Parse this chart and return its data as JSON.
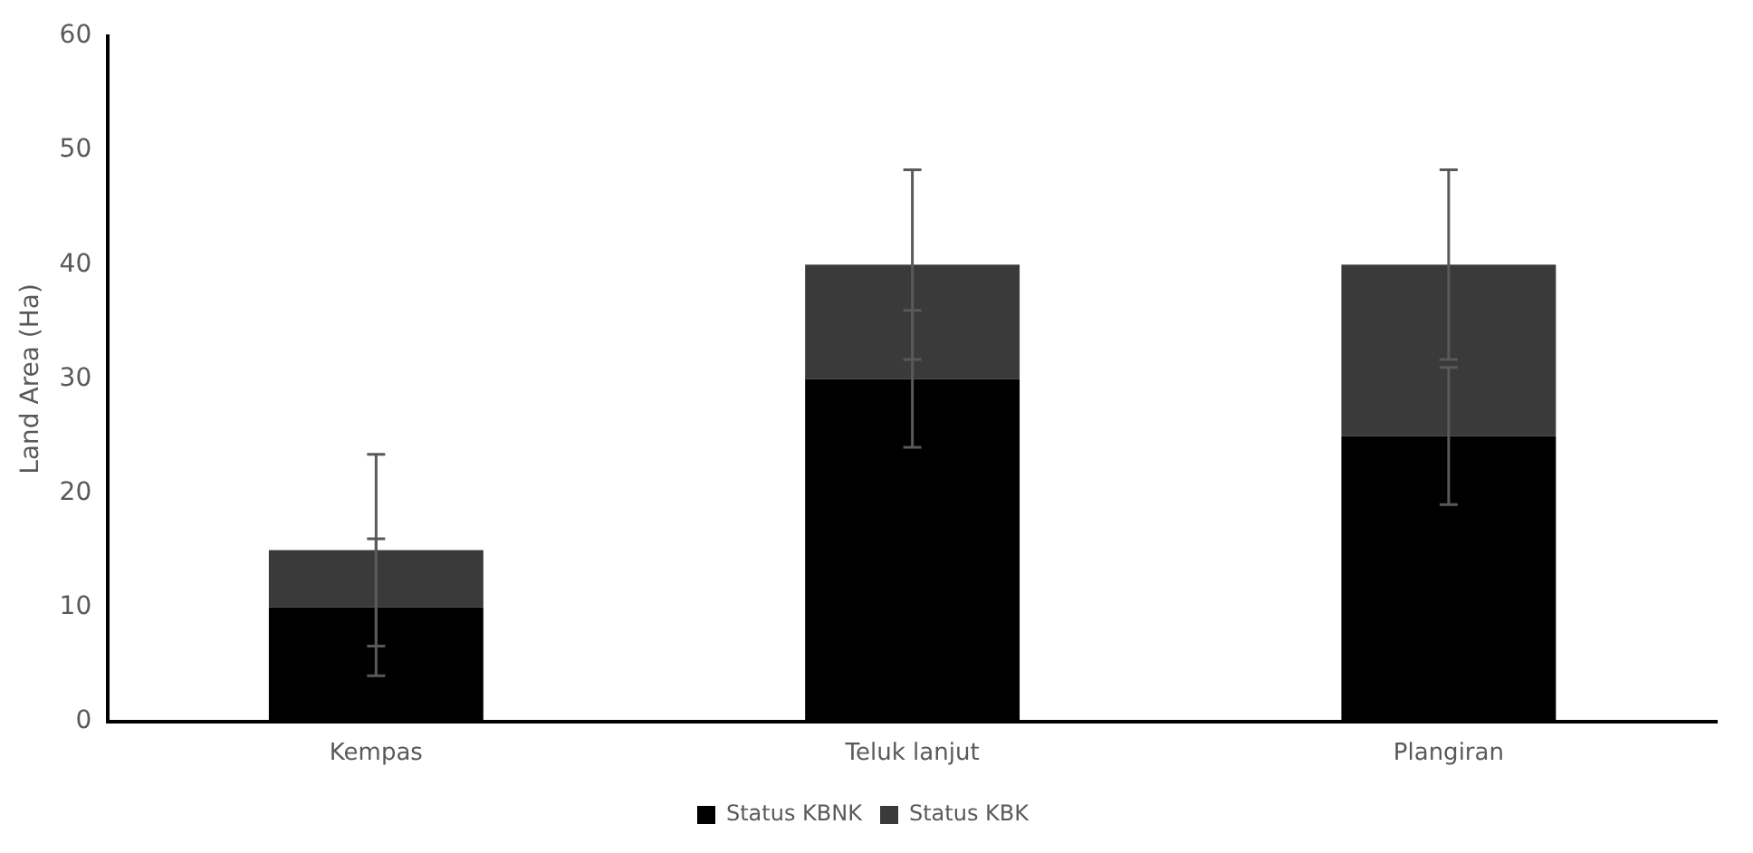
{
  "chart_data": {
    "type": "bar",
    "stacked": true,
    "ylabel": "Land Area (Ha)",
    "categories": [
      "Kempas",
      "Teluk lanjut",
      "Plangiran"
    ],
    "series": [
      {
        "name": "Status KBNK",
        "color": "#000000",
        "values": [
          10,
          30,
          25
        ],
        "errors": [
          6,
          6,
          6
        ]
      },
      {
        "name": "Status KBK",
        "color": "#3a3a3a",
        "values": [
          5,
          10,
          15
        ],
        "errors": [
          8.4,
          8.3,
          8.3
        ]
      }
    ],
    "ylim": [
      0,
      60
    ],
    "yticks": [
      0,
      10,
      20,
      30,
      40,
      50,
      60
    ],
    "grid": false,
    "legend": "bottom"
  }
}
